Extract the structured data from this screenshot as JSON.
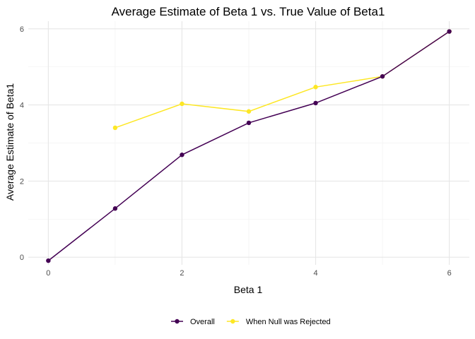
{
  "chart_data": {
    "type": "line",
    "title": "Average Estimate of Beta 1 vs. True Value of Beta1",
    "xlabel": "Beta 1",
    "ylabel": "Average Estimate of Beta1",
    "xlim": [
      -0.3,
      6.3
    ],
    "ylim": [
      -0.2,
      6.2
    ],
    "xticks": [
      0,
      2,
      4,
      6
    ],
    "yticks": [
      0,
      2,
      4,
      6
    ],
    "grid": true,
    "legend_position": "bottom",
    "series": [
      {
        "name": "Overall",
        "color": "#440154",
        "x": [
          0,
          1,
          2,
          3,
          4,
          5,
          6
        ],
        "y": [
          -0.09,
          1.28,
          2.69,
          3.53,
          4.05,
          4.75,
          5.93
        ]
      },
      {
        "name": "When Null was Rejected",
        "color": "#FDE725",
        "x": [
          1,
          2,
          3,
          4,
          5,
          6
        ],
        "y": [
          3.4,
          4.03,
          3.83,
          4.47,
          4.75,
          5.93
        ]
      }
    ]
  }
}
